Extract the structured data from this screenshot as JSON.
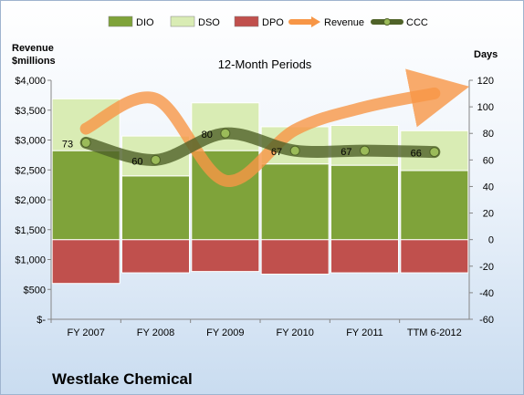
{
  "company_name": "Westlake Chemical",
  "chart_data": {
    "type": "bar",
    "title": "12-Month Periods",
    "categories": [
      "FY 2007",
      "FY 2008",
      "FY 2009",
      "FY 2010",
      "FY 2011",
      "TTM 6-2012"
    ],
    "left_axis": {
      "label_line1": "Revenue",
      "label_line2": "$millions",
      "range": [
        0,
        4000
      ],
      "step": 500,
      "ticks": [
        "$-",
        "$500",
        "$1,000",
        "$1,500",
        "$2,000",
        "$2,500",
        "$3,000",
        "$3,500",
        "$4,000"
      ]
    },
    "right_axis": {
      "label": "Days",
      "range": [
        -60,
        120
      ],
      "step": 20,
      "ticks": [
        "-60",
        "-40",
        "-20",
        "0",
        "20",
        "40",
        "60",
        "80",
        "100",
        "120"
      ]
    },
    "legend_position": "top",
    "series": [
      {
        "name": "DIO",
        "kind": "stacked-bar",
        "axis": "right",
        "values": [
          67,
          48,
          67,
          57,
          56,
          52
        ],
        "color": "#7fa33a"
      },
      {
        "name": "DSO",
        "kind": "stacked-bar",
        "axis": "right",
        "values": [
          39,
          30,
          36,
          28,
          30,
          30
        ],
        "color": "#d9ecb4"
      },
      {
        "name": "DPO",
        "kind": "negative-bar",
        "axis": "right",
        "values": [
          -33,
          -25,
          -24,
          -26,
          -25,
          -25
        ],
        "color": "#c0504d"
      },
      {
        "name": "Revenue",
        "kind": "line",
        "axis": "left",
        "values": [
          3190,
          3690,
          2320,
          3170,
          3550,
          3780
        ],
        "color": "#f79646"
      },
      {
        "name": "CCC",
        "kind": "line",
        "axis": "right",
        "values": [
          73,
          60,
          80,
          67,
          67,
          66
        ],
        "color": "#4f6228"
      }
    ],
    "data_labels": {
      "CCC": [
        "73",
        "60",
        "80",
        "67",
        "67",
        "66"
      ]
    },
    "grid": false
  }
}
